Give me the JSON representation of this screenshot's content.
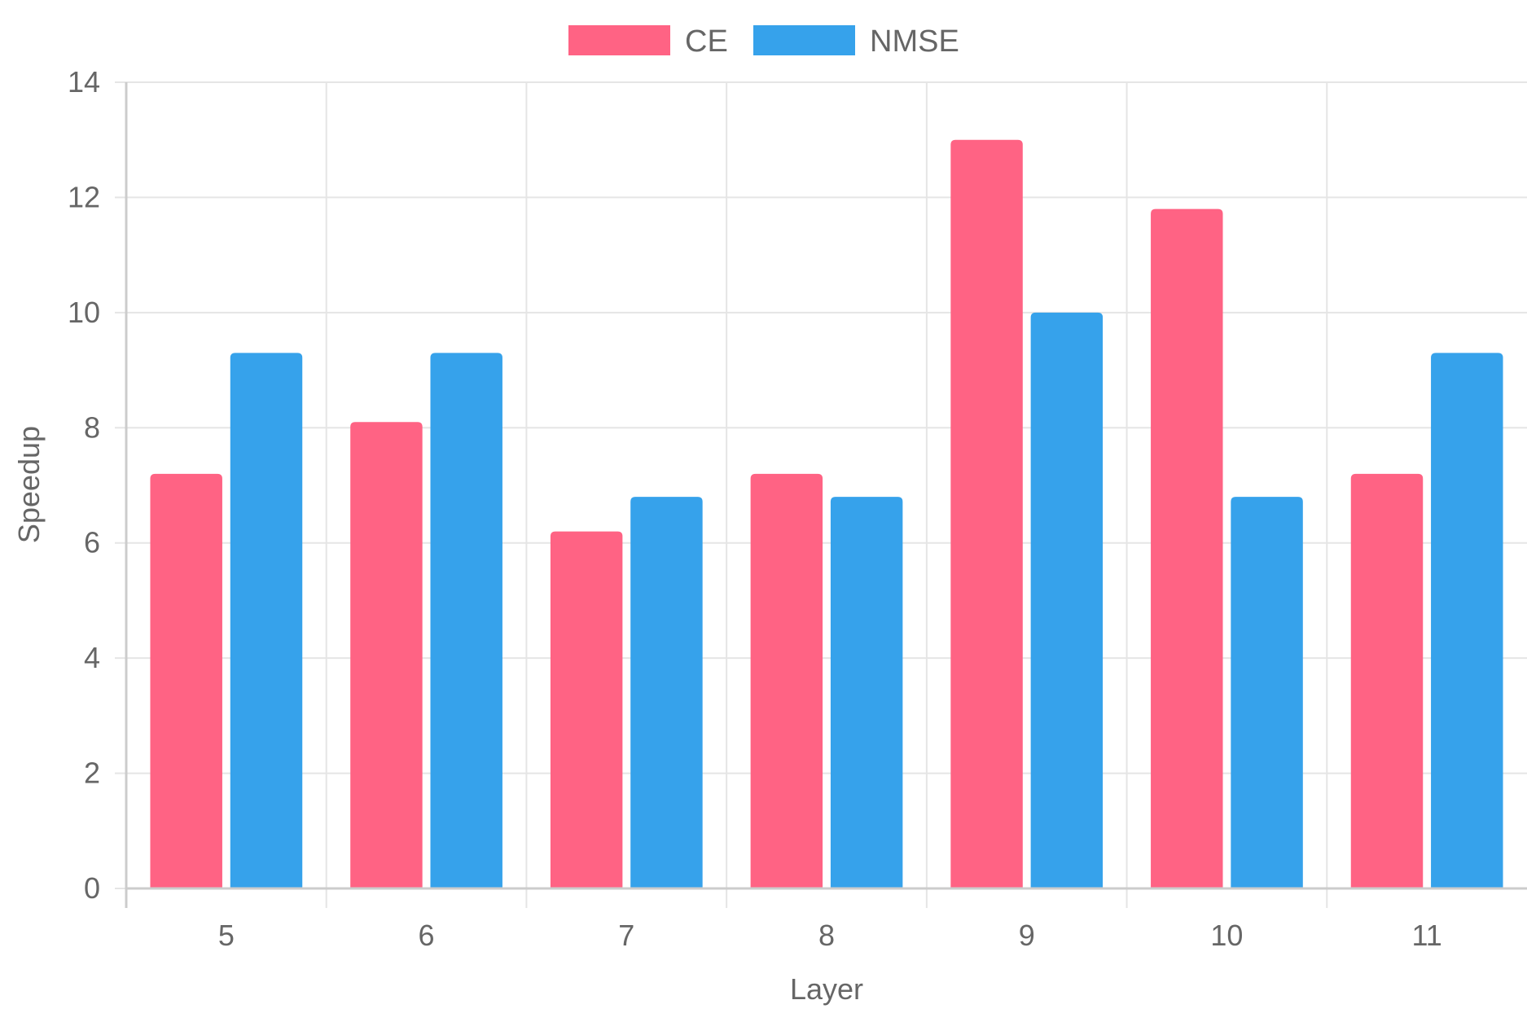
{
  "chart_data": {
    "type": "bar",
    "xlabel": "Layer",
    "ylabel": "Speedup",
    "categories": [
      "5",
      "6",
      "7",
      "8",
      "9",
      "10",
      "11"
    ],
    "series": [
      {
        "name": "CE",
        "color": "#ff6384",
        "values": [
          7.2,
          8.1,
          6.2,
          7.2,
          13.0,
          11.8,
          7.2
        ]
      },
      {
        "name": "NMSE",
        "color": "#36a2eb",
        "values": [
          9.3,
          9.3,
          6.8,
          6.8,
          10.0,
          6.8,
          9.3
        ]
      }
    ],
    "ylim": [
      0,
      14
    ],
    "yticks": [
      "0",
      "2",
      "4",
      "6",
      "8",
      "10",
      "12",
      "14"
    ],
    "grid": true,
    "legend_position": "top-center",
    "colors": {
      "grid": "#e5e5e5",
      "axis": "#cccccc",
      "text": "#666666"
    }
  }
}
